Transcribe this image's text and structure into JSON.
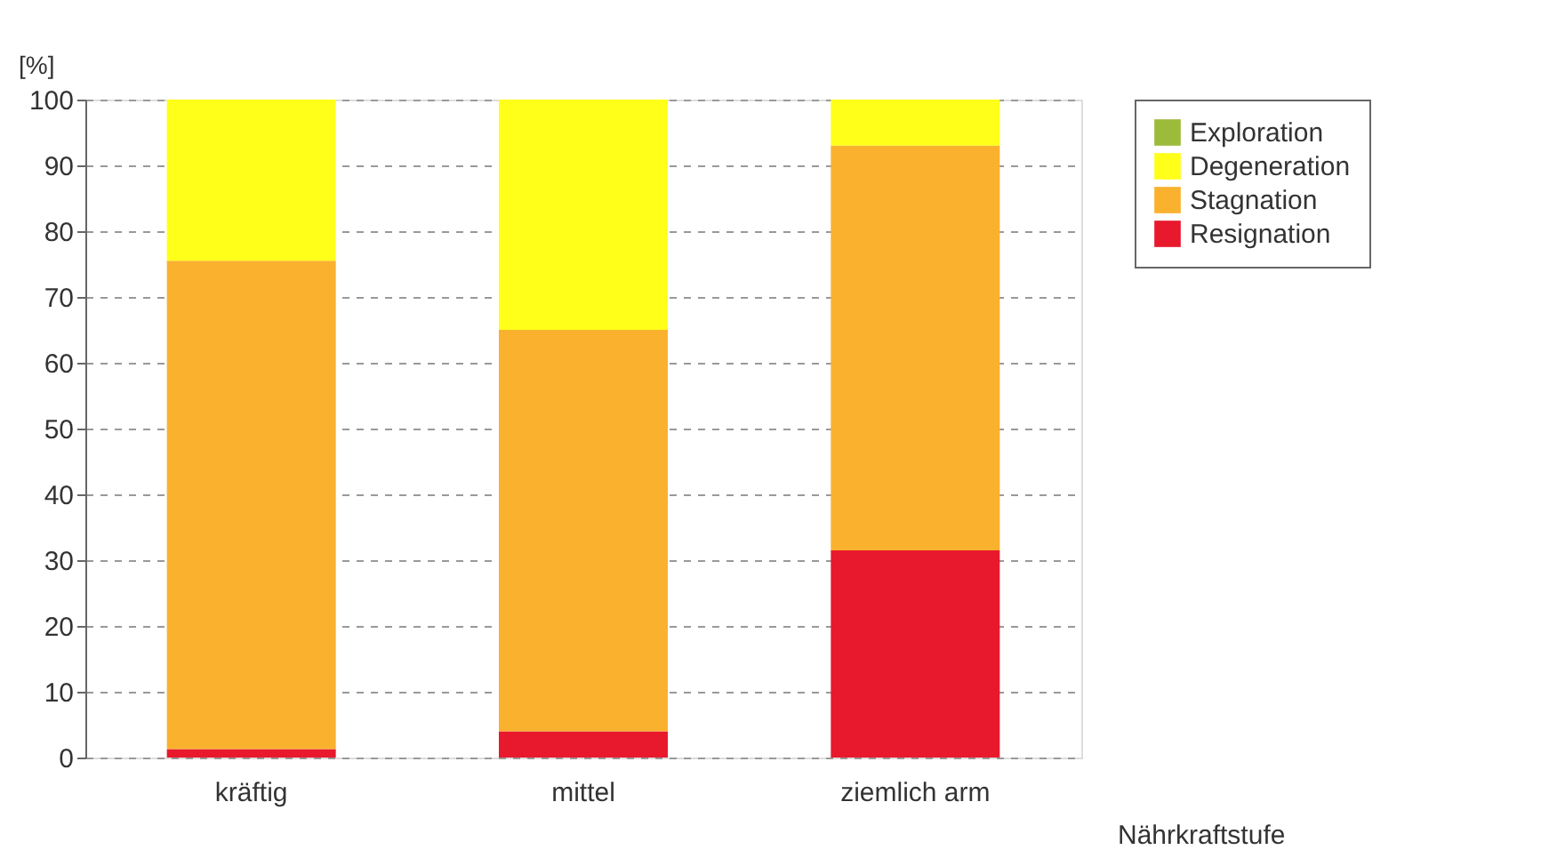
{
  "chart_data": {
    "type": "bar",
    "stacked": true,
    "xlabel": "Nährkraftstufe",
    "ylabel": "[%]",
    "categories": [
      "kräftig",
      "mittel",
      "ziemlich arm"
    ],
    "series": [
      {
        "name": "Resignation",
        "color": "#e8192c",
        "values": [
          1.3,
          4,
          31.5
        ]
      },
      {
        "name": "Stagnation",
        "color": "#f9b12e",
        "values": [
          74.2,
          61,
          61.5
        ]
      },
      {
        "name": "Degeneration",
        "color": "#ffff1a",
        "values": [
          24.5,
          35,
          7
        ]
      },
      {
        "name": "Exploration",
        "color": "#9dbb3a",
        "values": [
          0,
          0,
          0
        ]
      }
    ],
    "ylim": [
      0,
      100
    ],
    "yticks": [
      0,
      10,
      20,
      30,
      40,
      50,
      60,
      70,
      80,
      90,
      100
    ],
    "grid": "y",
    "legend": "right"
  }
}
